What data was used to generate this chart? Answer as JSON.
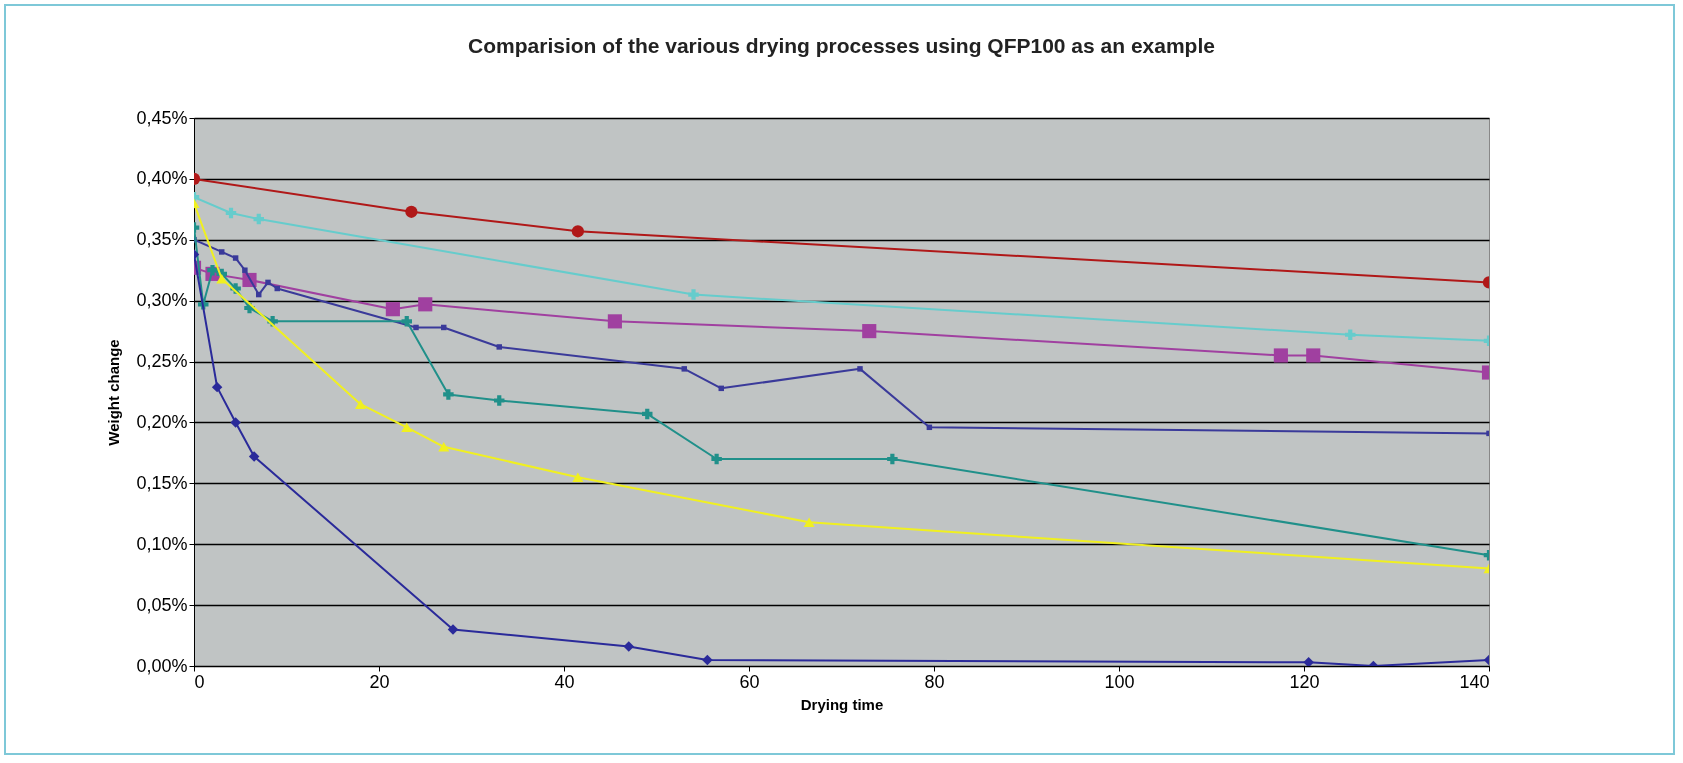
{
  "chart_data": {
    "type": "line",
    "title": "Comparision of the various drying processes using QFP100 as an example",
    "xlabel": "Drying time",
    "ylabel": "Weight change",
    "xlim": [
      0,
      140
    ],
    "xticks": [
      0,
      20,
      40,
      60,
      80,
      100,
      120,
      140
    ],
    "ylim": [
      0,
      0.45
    ],
    "yticks": [
      {
        "value": 0,
        "label": "0,00%"
      },
      {
        "value": 0.05,
        "label": "0,05%"
      },
      {
        "value": 0.1,
        "label": "0,10%"
      },
      {
        "value": 0.15,
        "label": "0,15%"
      },
      {
        "value": 0.2,
        "label": "0,20%"
      },
      {
        "value": 0.25,
        "label": "0,25%"
      },
      {
        "value": 0.3,
        "label": "0,30%"
      },
      {
        "value": 0.35,
        "label": "0,35%"
      },
      {
        "value": 0.4,
        "label": "0,40%"
      },
      {
        "value": 0.45,
        "label": "0,45%"
      }
    ],
    "grid": "y",
    "series": [
      {
        "color": "#b01818",
        "marker": "circle",
        "x": [
          0,
          23.5,
          41.5,
          140
        ],
        "values": [
          0.4,
          0.373,
          0.357,
          0.315
        ]
      },
      {
        "color": "#66cccc",
        "marker": "cross",
        "x": [
          0,
          4,
          7,
          54,
          125,
          140
        ],
        "values": [
          0.385,
          0.372,
          0.367,
          0.305,
          0.272,
          0.267
        ]
      },
      {
        "color": "#a040a0",
        "marker": "square",
        "x": [
          0,
          2,
          6,
          21.5,
          25,
          45.5,
          73,
          117.5,
          121,
          140
        ],
        "values": [
          0.327,
          0.322,
          0.317,
          0.293,
          0.297,
          0.283,
          0.275,
          0.255,
          0.255,
          0.241
        ]
      },
      {
        "color": "#3a3a9a",
        "marker": "square",
        "x": [
          0,
          3,
          4.5,
          5.5,
          7,
          8,
          9,
          24,
          27,
          33,
          53,
          57,
          72,
          79.5,
          140
        ],
        "values": [
          0.35,
          0.34,
          0.335,
          0.325,
          0.305,
          0.315,
          0.31,
          0.278,
          0.278,
          0.262,
          0.244,
          0.228,
          0.244,
          0.196,
          0.191
        ]
      },
      {
        "color": "#20908a",
        "marker": "cross",
        "x": [
          0,
          1,
          2,
          3,
          4.5,
          6,
          8.5,
          23,
          27.5,
          33,
          49,
          56.5,
          75.5,
          140
        ],
        "values": [
          0.36,
          0.297,
          0.325,
          0.322,
          0.31,
          0.294,
          0.283,
          0.283,
          0.223,
          0.218,
          0.207,
          0.17,
          0.17,
          0.091
        ]
      },
      {
        "color": "#f0f020",
        "marker": "triangle",
        "x": [
          0,
          3,
          18,
          23,
          27,
          41.5,
          66.5,
          140
        ],
        "values": [
          0.38,
          0.318,
          0.215,
          0.196,
          0.18,
          0.155,
          0.118,
          0.08
        ]
      },
      {
        "color": "#2a2a9a",
        "marker": "diamond",
        "x": [
          0,
          2.5,
          4.5,
          6.5,
          28,
          47,
          55.5,
          120.5,
          127.5,
          140
        ],
        "values": [
          0.338,
          0.229,
          0.2,
          0.172,
          0.03,
          0.016,
          0.005,
          0.003,
          0,
          0.005
        ]
      }
    ]
  }
}
